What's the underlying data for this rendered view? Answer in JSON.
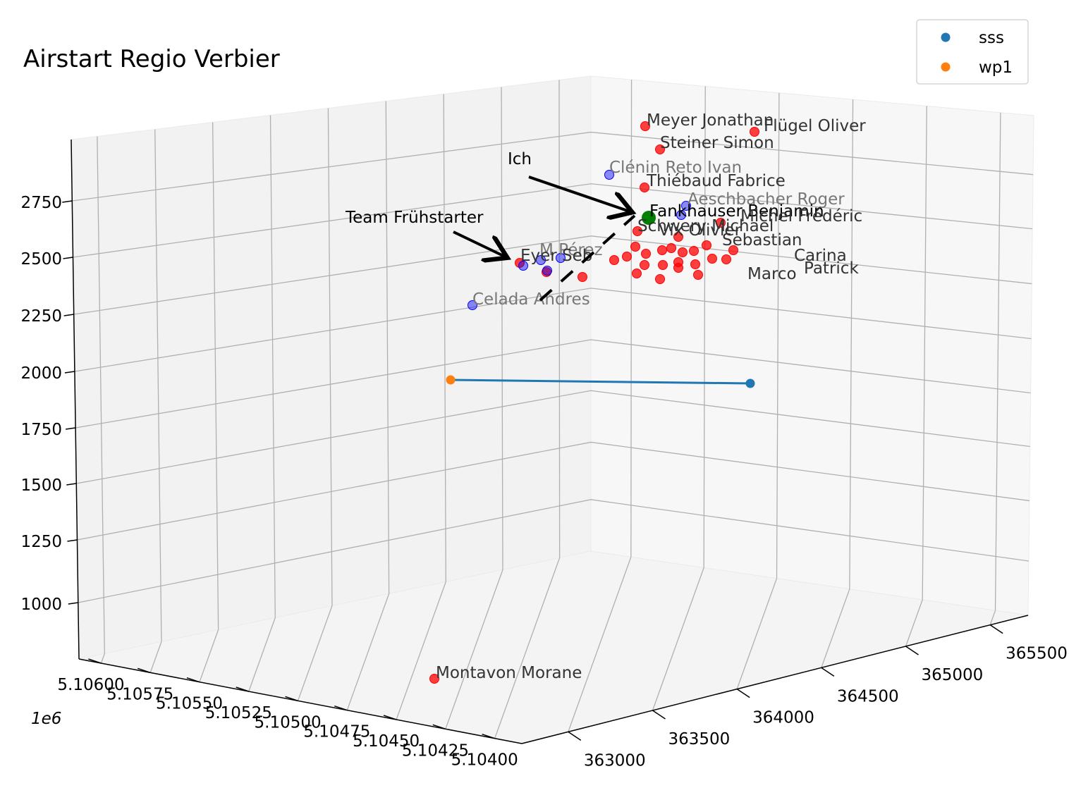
{
  "chart_data": {
    "type": "scatter",
    "title": "Airstart Regio Verbier",
    "axis_offset_label": "1e6",
    "xlabel": "",
    "ylabel": "",
    "zlabel": "",
    "x_ticks": [
      "363000",
      "363500",
      "364000",
      "364500",
      "365000",
      "365500"
    ],
    "y_ticks": [
      "5.10600",
      "5.10575",
      "5.10550",
      "5.10525",
      "5.10500",
      "5.10475",
      "5.10450",
      "5.10425",
      "5.10400"
    ],
    "z_ticks": [
      "1000",
      "1250",
      "1500",
      "1750",
      "2000",
      "2250",
      "2500",
      "2750"
    ],
    "grid": true,
    "legend": {
      "placement": "top-right",
      "entries": [
        {
          "name": "sss",
          "color": "#1f77b4"
        },
        {
          "name": "wp1",
          "color": "#ff7f0e"
        }
      ]
    },
    "route": {
      "color": "#1f77b4",
      "from": "wp1",
      "to": "sss"
    },
    "colors": {
      "pilot": "#ff0000",
      "team": "#0000ff",
      "me": "#008000",
      "sss": "#1f77b4",
      "wp1": "#ff7f0e"
    },
    "labeled_pilots": [
      "Meyer Jonathan",
      "Flügel Oliver",
      "Steiner Simon",
      "Clénin Reto Ivan",
      "Thiébaud Fabrice",
      "Aeschbacher Roger",
      "Fankhauser Benjamin",
      "Michel Frédéric",
      "Schwery Michael",
      "Vix Olivier",
      "Sebastian",
      "Carina",
      "Patrick",
      "Marco",
      "Celada Andres",
      "M Pérez",
      "Eyer Seb",
      "Montavon Morane"
    ],
    "annotations": [
      {
        "text": "Ich",
        "target": "Fankhauser Benjamin"
      },
      {
        "text": "Team Frühstarter",
        "target": "team cluster"
      }
    ]
  }
}
